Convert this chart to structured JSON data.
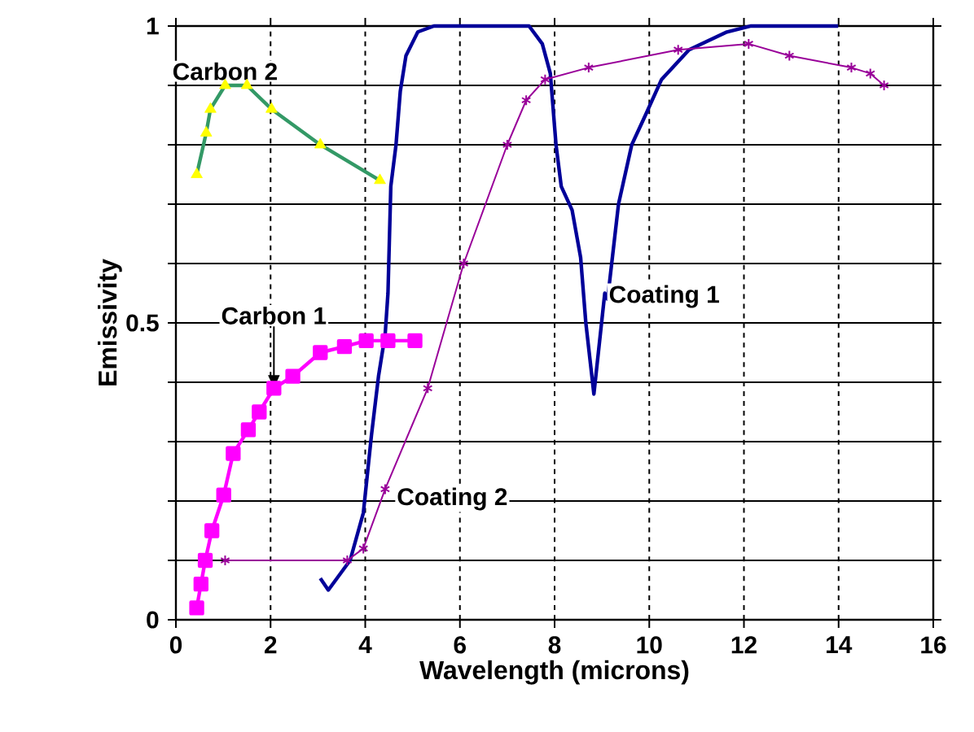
{
  "chart_data": {
    "type": "line",
    "xlabel": "Wavelength (microns)",
    "ylabel": "Emissivity",
    "xlim": [
      0,
      16
    ],
    "xticks": [
      0,
      2,
      4,
      6,
      8,
      10,
      12,
      14,
      16
    ],
    "ylim": [
      0,
      1
    ],
    "yticks": [
      0,
      {
        "value": 0.1,
        "label": null
      },
      {
        "value": 0.2,
        "label": null
      },
      {
        "value": 0.3,
        "label": null
      },
      {
        "value": 0.4,
        "label": null
      },
      0.5,
      {
        "value": 0.6,
        "label": null
      },
      {
        "value": 0.7,
        "label": null
      },
      {
        "value": 0.8,
        "label": null
      },
      {
        "value": 0.9,
        "label": null
      },
      1
    ],
    "grid": true,
    "line_style": "solid",
    "series": [
      {
        "name": "Carbon 2",
        "color": "#339966",
        "marker": "triangle",
        "colors": [
          "#ffff00",
          "#ffff00",
          "#ffff00",
          "#ffff00",
          "#ffff00",
          "#ffff00",
          "#ffff00",
          "#ffff00"
        ],
        "x": [
          0.44,
          0.64,
          0.73,
          1.04,
          1.5,
          2.02,
          3.05,
          4.31
        ],
        "values": [
          0.75,
          0.82,
          0.86,
          0.9,
          0.9,
          0.86,
          0.8,
          0.74
        ]
      },
      {
        "name": "Carbon 1",
        "color": "#ff00ff",
        "marker": "square",
        "x": [
          0.44,
          0.53,
          0.62,
          0.76,
          1.01,
          1.21,
          1.53,
          1.76,
          2.07,
          2.47,
          3.05,
          3.56,
          4.02,
          4.48,
          5.05
        ],
        "values": [
          0.02,
          0.06,
          0.1,
          0.15,
          0.21,
          0.28,
          0.32,
          0.35,
          0.39,
          0.41,
          0.45,
          0.46,
          0.47,
          0.47,
          0.47
        ]
      },
      {
        "name": "Coating 1",
        "color": "#000099",
        "marker": "none",
        "x": [
          3.05,
          3.22,
          3.68,
          3.96,
          4.13,
          4.28,
          4.42,
          4.48,
          4.54,
          4.65,
          4.74,
          4.86,
          5.11,
          5.45,
          5.91,
          7.46,
          7.74,
          7.91,
          8.03,
          8.14,
          8.37,
          8.55,
          8.66,
          8.83,
          9.06,
          9.12,
          9.35,
          9.63,
          9.92,
          10.26,
          10.84,
          11.64,
          12.15,
          12.78,
          13.99
        ],
        "values": [
          0.07,
          0.05,
          0.1,
          0.18,
          0.31,
          0.41,
          0.48,
          0.55,
          0.73,
          0.8,
          0.89,
          0.95,
          0.99,
          1,
          1,
          1,
          0.97,
          0.92,
          0.8,
          0.73,
          0.69,
          0.61,
          0.5,
          0.38,
          0.55,
          0.54,
          0.7,
          0.8,
          0.85,
          0.91,
          0.96,
          0.99,
          1,
          1,
          1
        ]
      },
      {
        "name": "Coating 2",
        "color": "#990099",
        "marker": "cross",
        "x": [
          1.04,
          3.62,
          3.96,
          4.42,
          5.32,
          6.08,
          7.0,
          7.4,
          7.8,
          8.72,
          10.61,
          12.1,
          12.96,
          14.27,
          14.67,
          14.96
        ],
        "values": [
          0.1,
          0.1,
          0.12,
          0.22,
          0.39,
          0.6,
          0.8,
          0.875,
          0.91,
          0.93,
          0.96,
          0.97,
          0.95,
          0.93,
          0.92,
          0.9
        ]
      }
    ]
  }
}
